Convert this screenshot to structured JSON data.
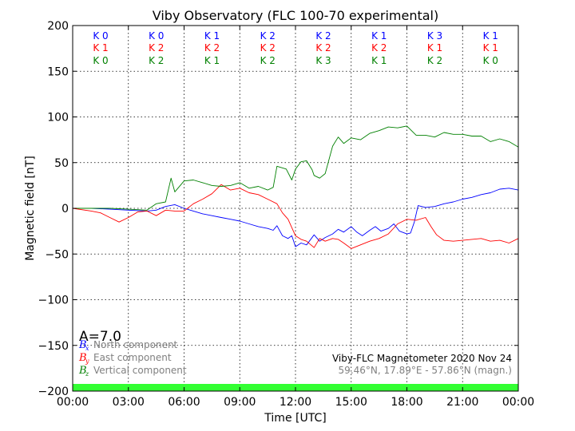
{
  "chart_data": {
    "type": "line",
    "title": "Viby Observatory (FLC 100-70 experimental)",
    "xlabel": "Time [UTC]",
    "ylabel": "Magnetic field [nT]",
    "xlim": [
      0,
      24
    ],
    "ylim": [
      -200,
      200
    ],
    "grid": true,
    "xticks": [
      0,
      3,
      6,
      9,
      12,
      15,
      18,
      21,
      24
    ],
    "xtick_labels": [
      "00:00",
      "03:00",
      "06:00",
      "09:00",
      "12:00",
      "15:00",
      "18:00",
      "21:00",
      "00:00"
    ],
    "yticks": [
      200,
      150,
      100,
      50,
      0,
      -50,
      -100,
      -150,
      -200
    ],
    "ytick_labels": [
      "200",
      "150",
      "100",
      "50",
      "0",
      "−50",
      "−100",
      "−150",
      "−200"
    ],
    "k_indices": {
      "north": [
        "K 0",
        "K 0",
        "K 1",
        "K 2",
        "K 2",
        "K 1",
        "K 3",
        "K 1"
      ],
      "east": [
        "K 1",
        "K 2",
        "K 2",
        "K 2",
        "K 2",
        "K 2",
        "K 1",
        "K 1"
      ],
      "vertical": [
        "K 0",
        "K 2",
        "K 1",
        "K 2",
        "K 3",
        "K 1",
        "K 2",
        "K 0"
      ]
    },
    "a_index": "A=7.0",
    "legend": [
      {
        "symbol": "B",
        "sub": "x",
        "text": "North component",
        "color": "#0000ff"
      },
      {
        "symbol": "B",
        "sub": "y",
        "text": "East component",
        "color": "#ff0000"
      },
      {
        "symbol": "B",
        "sub": "z",
        "text": "Vertical component",
        "color": "#008000"
      }
    ],
    "info_line1": "Viby-FLC Magnetometer 2020 Nov 24",
    "info_line2": "59.46°N, 17.89°E - 57.86°N (magn.)",
    "series": [
      {
        "name": "North component",
        "color": "#0000ff",
        "x": [
          0,
          1,
          2,
          3,
          4,
          4.5,
          5,
          5.5,
          6,
          6.5,
          7,
          7.5,
          8,
          8.5,
          9,
          9.5,
          10,
          10.5,
          10.8,
          11,
          11.3,
          11.6,
          11.8,
          12,
          12.3,
          12.6,
          13,
          13.3,
          13.6,
          14,
          14.3,
          14.6,
          15,
          15.3,
          15.6,
          16,
          16.3,
          16.6,
          17,
          17.3,
          17.6,
          18,
          18.2,
          18.4,
          18.6,
          19,
          19.5,
          20,
          20.5,
          21,
          21.5,
          22,
          22.5,
          23,
          23.5,
          24
        ],
        "y": [
          0,
          0,
          -1,
          -2,
          -3,
          -2,
          2,
          4,
          0,
          -3,
          -6,
          -8,
          -10,
          -12,
          -14,
          -17,
          -20,
          -22,
          -24,
          -19,
          -30,
          -33,
          -30,
          -42,
          -38,
          -40,
          -29,
          -36,
          -32,
          -28,
          -23,
          -26,
          -20,
          -26,
          -30,
          -24,
          -20,
          -25,
          -22,
          -17,
          -25,
          -28,
          -27,
          -15,
          3,
          1,
          2,
          5,
          7,
          10,
          12,
          15,
          17,
          21,
          22,
          20
        ]
      },
      {
        "name": "East component",
        "color": "#ff0000",
        "x": [
          0,
          1,
          1.5,
          2,
          2.5,
          3,
          3.5,
          4,
          4.5,
          5,
          5.5,
          6,
          6.5,
          7,
          7.5,
          8,
          8.5,
          9,
          9.5,
          10,
          10.5,
          11,
          11.3,
          11.6,
          12,
          12.3,
          12.6,
          13,
          13.3,
          13.6,
          14,
          14.3,
          14.6,
          15,
          15.5,
          16,
          16.5,
          17,
          17.5,
          18,
          18.5,
          19,
          19.3,
          19.6,
          20,
          20.5,
          21,
          21.5,
          22,
          22.5,
          23,
          23.5,
          24
        ],
        "y": [
          0,
          -3,
          -5,
          -10,
          -15,
          -10,
          -4,
          -3,
          -8,
          -2,
          -3,
          -3,
          5,
          10,
          16,
          26,
          20,
          22,
          17,
          15,
          10,
          5,
          -5,
          -12,
          -30,
          -34,
          -36,
          -43,
          -33,
          -36,
          -33,
          -34,
          -38,
          -44,
          -40,
          -36,
          -33,
          -28,
          -17,
          -12,
          -13,
          -10,
          -20,
          -29,
          -35,
          -36,
          -35,
          -34,
          -33,
          -36,
          -35,
          -38,
          -33
        ]
      },
      {
        "name": "Vertical component",
        "color": "#008000",
        "x": [
          0,
          1,
          2,
          3,
          4,
          4.5,
          5,
          5.3,
          5.5,
          6,
          6.5,
          7,
          7.5,
          8,
          8.5,
          9,
          9.5,
          10,
          10.5,
          10.8,
          11,
          11.5,
          11.8,
          12,
          12.3,
          12.6,
          12.9,
          13,
          13.3,
          13.6,
          14,
          14.3,
          14.6,
          15,
          15.5,
          16,
          16.5,
          17,
          17.5,
          18,
          18.5,
          19,
          19.5,
          20,
          20.5,
          21,
          21.5,
          22,
          22.5,
          23,
          23.5,
          24
        ],
        "y": [
          0,
          0,
          0,
          -1,
          -2,
          5,
          7,
          33,
          18,
          30,
          31,
          28,
          25,
          24,
          25,
          28,
          22,
          24,
          20,
          23,
          46,
          43,
          31,
          43,
          51,
          52,
          42,
          36,
          33,
          38,
          68,
          78,
          71,
          77,
          75,
          82,
          85,
          89,
          88,
          90,
          80,
          80,
          78,
          83,
          81,
          81,
          79,
          79,
          73,
          76,
          73,
          67
        ]
      }
    ]
  }
}
